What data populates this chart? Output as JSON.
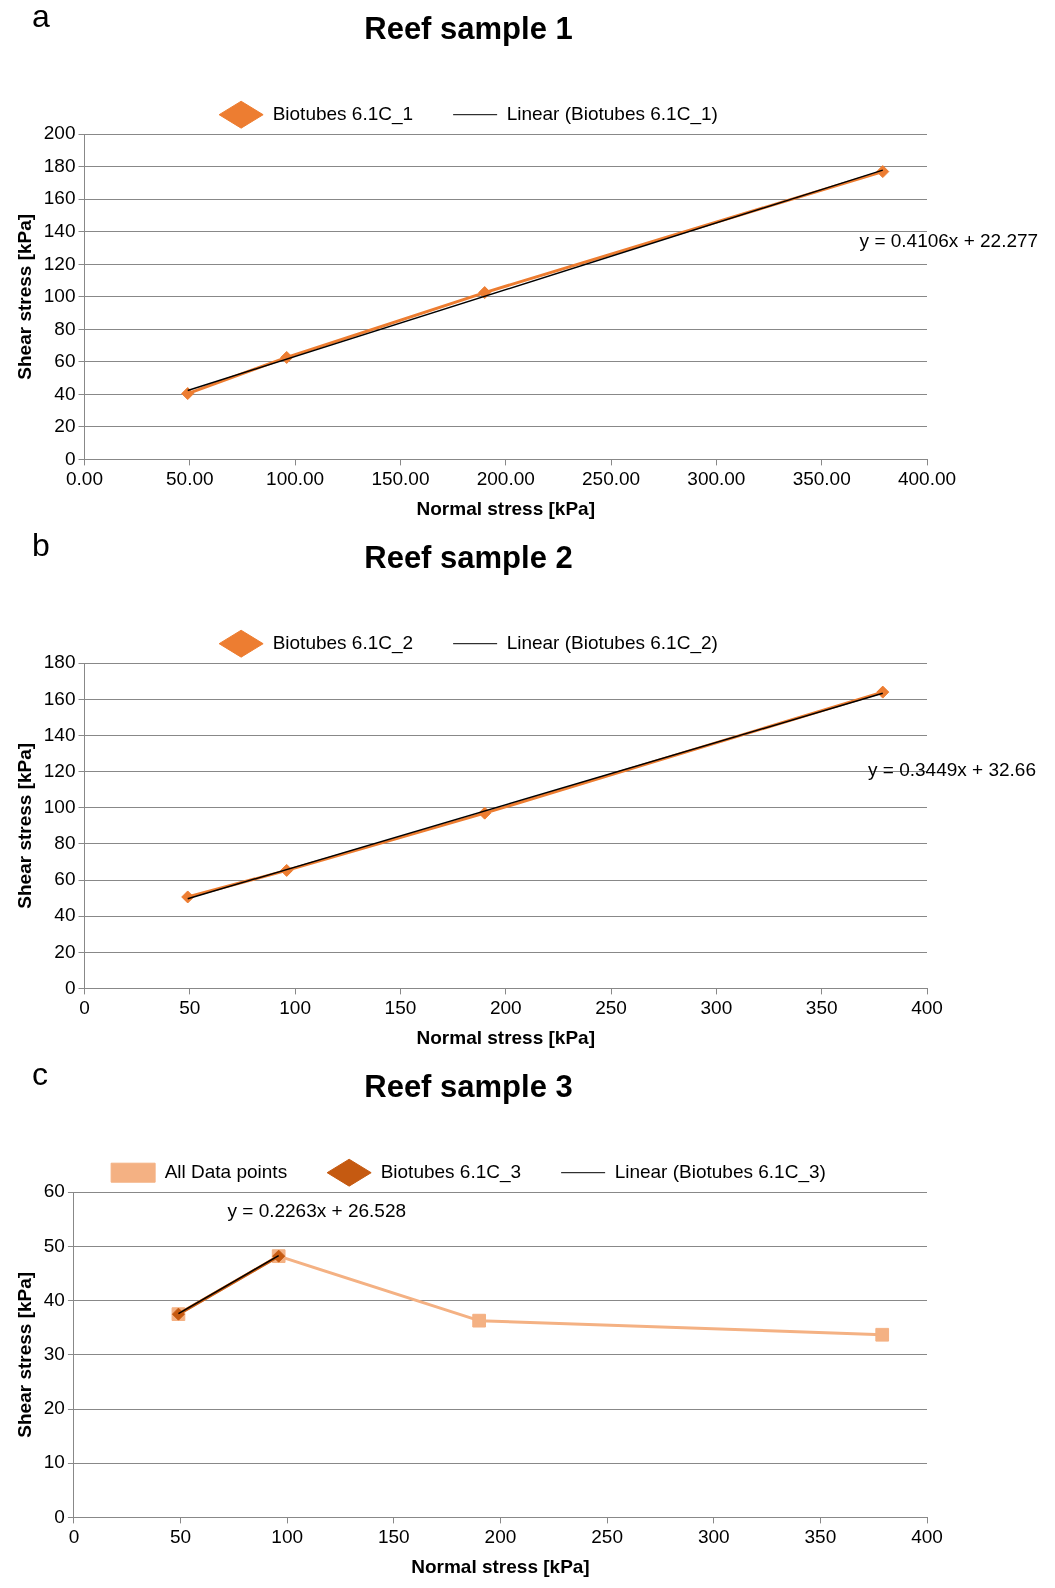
{
  "chart_data": [
    {
      "type": "line",
      "title": "Reef sample 1",
      "xlabel": "Normal stress [kPa]",
      "ylabel": "Shear stress [kPa]",
      "legend": "top",
      "grid": "y",
      "x": [
        49,
        96,
        190,
        379
      ],
      "series": [
        {
          "name": "Biotubes 6.1C_1",
          "color": "#ed7d31",
          "marker": "diamond",
          "values": [
            40.5,
            62.7,
            102.6,
            177
          ]
        },
        {
          "name": "Linear (Biotubes 6.1C_1)",
          "color": "#000000",
          "marker": "none",
          "x": [
            49,
            379
          ],
          "values": [
            42.4,
            177.9
          ]
        }
      ],
      "xlim": [
        0,
        400
      ],
      "xticks": [
        {
          "value": 0,
          "label": "0.00"
        },
        {
          "value": 50,
          "label": "50.00"
        },
        {
          "value": 100,
          "label": "100.00"
        },
        {
          "value": 150,
          "label": "150.00"
        },
        {
          "value": 200,
          "label": "200.00"
        },
        {
          "value": 250,
          "label": "250.00"
        },
        {
          "value": 300,
          "label": "300.00"
        },
        {
          "value": 350,
          "label": "350.00"
        },
        {
          "value": 400,
          "label": "400.00"
        }
      ],
      "ylim": [
        0,
        200
      ],
      "yticks": [
        0,
        20,
        40,
        60,
        80,
        100,
        120,
        140,
        160,
        180,
        200
      ],
      "annotations": [
        "a",
        "y = 0.4106x + 22.277"
      ]
    },
    {
      "type": "line",
      "title": "Reef sample 2",
      "xlabel": "Normal stress [kPa]",
      "ylabel": "Shear stress [kPa]",
      "legend": "top",
      "grid": "y",
      "x": [
        49,
        96,
        190,
        379
      ],
      "series": [
        {
          "name": "Biotubes 6.1C_2",
          "color": "#ed7d31",
          "marker": "diamond",
          "values": [
            50.6,
            65.3,
            97,
            164
          ]
        },
        {
          "name": "Linear (Biotubes 6.1C_2)",
          "color": "#000000",
          "marker": "none",
          "x": [
            49,
            379
          ],
          "values": [
            49.6,
            163.4
          ]
        }
      ],
      "xlim": [
        0,
        400
      ],
      "xticks": [
        0,
        50,
        100,
        150,
        200,
        250,
        300,
        350,
        400
      ],
      "ylim": [
        0,
        180
      ],
      "yticks": [
        0,
        20,
        40,
        60,
        80,
        100,
        120,
        140,
        160,
        180
      ],
      "annotations": [
        "b",
        "y = 0.3449x + 32.66"
      ]
    },
    {
      "type": "line",
      "title": "Reef sample 3",
      "xlabel": "Normal stress [kPa]",
      "ylabel": "Shear stress [kPa]",
      "legend": "top",
      "grid": "y",
      "x": [
        49,
        96,
        190,
        379
      ],
      "series": [
        {
          "name": "All Data points",
          "color": "#f4b183",
          "marker": "square",
          "values": [
            37.5,
            48.2,
            36.3,
            33.7
          ]
        },
        {
          "name": "Biotubes 6.1C_3",
          "color": "#c55a11",
          "marker": "diamond",
          "x": [
            49,
            96
          ],
          "values": [
            37.5,
            48.2
          ]
        },
        {
          "name": "Linear (Biotubes 6.1C_3)",
          "color": "#000000",
          "marker": "none",
          "x": [
            49,
            96
          ],
          "values": [
            37.6,
            48.3
          ]
        }
      ],
      "xlim": [
        0,
        400
      ],
      "xticks": [
        0,
        50,
        100,
        150,
        200,
        250,
        300,
        350,
        400
      ],
      "ylim": [
        0,
        60
      ],
      "yticks": [
        0,
        10,
        20,
        30,
        40,
        50,
        60
      ],
      "annotations": [
        "c",
        "y = 0.2263x + 26.528"
      ]
    }
  ]
}
